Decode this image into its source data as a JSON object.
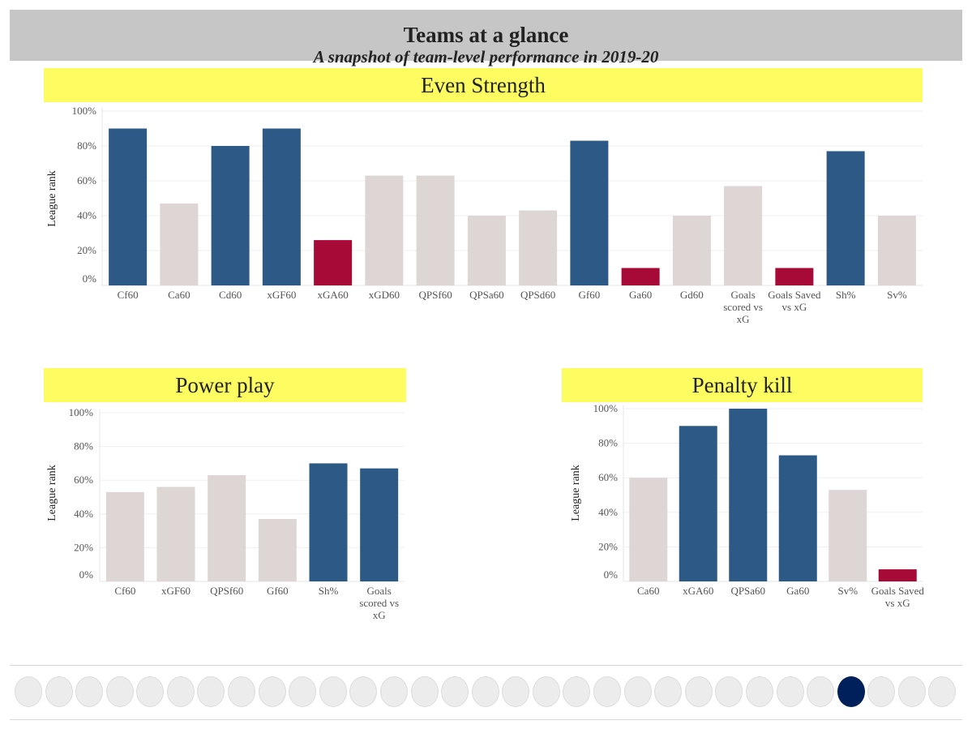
{
  "header": {
    "title": "Teams at a glance",
    "subtitle": "A snapshot of team-level performance in 2019-20"
  },
  "colors": {
    "top": "#2c5986",
    "bottom": "#a80a38",
    "neutral": "#ded5d5",
    "band": "#fdfd62"
  },
  "chart_data": [
    {
      "type": "bar",
      "title": "Even Strength",
      "ylabel": "League rank",
      "ylim": [
        0,
        100
      ],
      "yticks": [
        "0%",
        "20%",
        "40%",
        "60%",
        "80%",
        "100%"
      ],
      "grid": true,
      "categories": [
        "Cf60",
        "Ca60",
        "Cd60",
        "xGF60",
        "xGA60",
        "xGD60",
        "QPSf60",
        "QPSa60",
        "QPSd60",
        "Gf60",
        "Ga60",
        "Gd60",
        "Goals scored vs xG",
        "Goals Saved vs xG",
        "Sh%",
        "Sv%"
      ],
      "values": [
        90,
        47,
        80,
        90,
        26,
        63,
        63,
        40,
        43,
        83,
        10,
        40,
        57,
        10,
        77,
        40
      ],
      "tiers": [
        "top",
        "neutral",
        "top",
        "top",
        "bottom",
        "neutral",
        "neutral",
        "neutral",
        "neutral",
        "top",
        "bottom",
        "neutral",
        "neutral",
        "bottom",
        "top",
        "neutral"
      ]
    },
    {
      "type": "bar",
      "title": "Power play",
      "ylabel": "League rank",
      "ylim": [
        0,
        100
      ],
      "yticks": [
        "0%",
        "20%",
        "40%",
        "60%",
        "80%",
        "100%"
      ],
      "grid": true,
      "categories": [
        "Cf60",
        "xGF60",
        "QPSf60",
        "Gf60",
        "Sh%",
        "Goals scored vs xG"
      ],
      "values": [
        53,
        56,
        63,
        37,
        70,
        67
      ],
      "tiers": [
        "neutral",
        "neutral",
        "neutral",
        "neutral",
        "top",
        "top"
      ]
    },
    {
      "type": "bar",
      "title": "Penalty kill",
      "ylabel": "League rank",
      "ylim": [
        0,
        100
      ],
      "yticks": [
        "0%",
        "20%",
        "40%",
        "60%",
        "80%",
        "100%"
      ],
      "grid": true,
      "categories": [
        "Ca60",
        "xGA60",
        "QPSa60",
        "Ga60",
        "Sv%",
        "Goals Saved vs xG"
      ],
      "values": [
        60,
        90,
        100,
        73,
        53,
        7
      ],
      "tiers": [
        "neutral",
        "top",
        "top",
        "top",
        "neutral",
        "bottom"
      ]
    }
  ],
  "logos": {
    "count": 31,
    "active_index": 27,
    "active_icon": "toronto-maple-leafs-logo-icon",
    "icon": "team-logo-icon"
  }
}
